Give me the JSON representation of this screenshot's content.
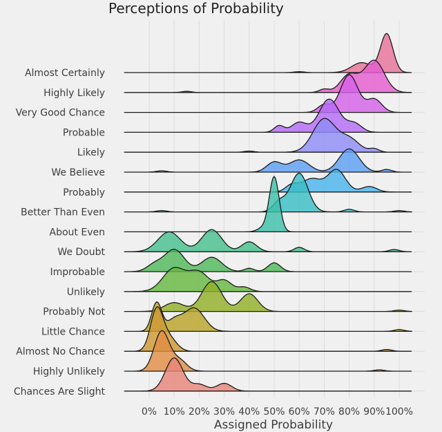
{
  "chart_data": {
    "type": "area",
    "subtype": "ridgeline",
    "title": "Perceptions of Probability",
    "xlabel": "Assigned Probability",
    "ylabel": "",
    "xlim": [
      -10,
      105
    ],
    "x_ticks": [
      0,
      10,
      20,
      30,
      40,
      50,
      60,
      70,
      80,
      90,
      100
    ],
    "x_tick_labels": [
      "0%",
      "10%",
      "20%",
      "30%",
      "40%",
      "50%",
      "60%",
      "70%",
      "80%",
      "90%",
      "100%"
    ],
    "grid": true,
    "legend": "none",
    "categories": [
      "Almost Certainly",
      "Highly Likely",
      "Very Good Chance",
      "Probable",
      "Likely",
      "We Believe",
      "Probably",
      "Better Than Even",
      "About Even",
      "We Doubt",
      "Improbable",
      "Unlikely",
      "Probably Not",
      "Little Chance",
      "Almost No Chance",
      "Highly Unlikely",
      "Chances Are Slight"
    ],
    "series": [
      {
        "name": "Almost Certainly",
        "color": "#e8739a",
        "peaks": [
          [
            95,
            2.5,
            1.75
          ],
          [
            85,
            4,
            0.45
          ],
          [
            60,
            2,
            0.04
          ]
        ]
      },
      {
        "name": "Highly Likely",
        "color": "#e55dcf",
        "peaks": [
          [
            90,
            4,
            1.45
          ],
          [
            80,
            3.5,
            0.8
          ],
          [
            70,
            2,
            0.15
          ],
          [
            15,
            2,
            0.05
          ]
        ]
      },
      {
        "name": "Very Good Chance",
        "color": "#d462e8",
        "peaks": [
          [
            80,
            3.5,
            1.7
          ],
          [
            70,
            2.5,
            0.35
          ],
          [
            90,
            3,
            0.6
          ]
        ]
      },
      {
        "name": "Probable",
        "color": "#b46cf5",
        "peaks": [
          [
            72,
            4,
            1.5
          ],
          [
            60,
            3,
            0.45
          ],
          [
            52,
            2,
            0.3
          ],
          [
            82,
            3,
            0.4
          ]
        ]
      },
      {
        "name": "Likely",
        "color": "#8f8cf7",
        "peaks": [
          [
            70,
            4.5,
            1.5
          ],
          [
            80,
            4,
            0.6
          ],
          [
            90,
            2,
            0.15
          ],
          [
            40,
            2,
            0.05
          ]
        ]
      },
      {
        "name": "We Believe",
        "color": "#5f9ff2",
        "peaks": [
          [
            80,
            4,
            1.05
          ],
          [
            60,
            4,
            0.55
          ],
          [
            50,
            3,
            0.45
          ],
          [
            95,
            2,
            0.12
          ],
          [
            5,
            2,
            0.06
          ]
        ]
      },
      {
        "name": "Probably",
        "color": "#4cb4eb",
        "peaks": [
          [
            75,
            3.5,
            1.0
          ],
          [
            65,
            4,
            0.6
          ],
          [
            57,
            2.5,
            0.3
          ],
          [
            88,
            3,
            0.25
          ]
        ]
      },
      {
        "name": "Better Than Even",
        "color": "#3bbdc4",
        "peaks": [
          [
            60,
            3.5,
            1.75
          ],
          [
            52,
            2.5,
            0.45
          ],
          [
            80,
            2,
            0.12
          ],
          [
            100,
            2,
            0.06
          ],
          [
            5,
            2,
            0.06
          ]
        ]
      },
      {
        "name": "About Even",
        "color": "#3dc0aa",
        "peaks": [
          [
            50,
            2,
            2.5
          ],
          [
            45,
            2,
            0.15
          ]
        ]
      },
      {
        "name": "We Doubt",
        "color": "#48c08e",
        "peaks": [
          [
            25,
            4,
            1.0
          ],
          [
            8,
            4.5,
            0.9
          ],
          [
            40,
            3,
            0.45
          ],
          [
            60,
            2,
            0.2
          ],
          [
            98,
            2,
            0.1
          ]
        ]
      },
      {
        "name": "Improbable",
        "color": "#52b85c",
        "peaks": [
          [
            10,
            4,
            1.0
          ],
          [
            25,
            4,
            0.65
          ],
          [
            2,
            3,
            0.3
          ],
          [
            50,
            2.5,
            0.4
          ],
          [
            40,
            2,
            0.15
          ]
        ]
      },
      {
        "name": "Unlikely",
        "color": "#67b840",
        "peaks": [
          [
            10,
            4.5,
            1.05
          ],
          [
            20,
            4,
            0.85
          ],
          [
            30,
            3,
            0.5
          ],
          [
            38,
            2.5,
            0.2
          ]
        ]
      },
      {
        "name": "Probably Not",
        "color": "#93b028",
        "peaks": [
          [
            25,
            4,
            1.35
          ],
          [
            40,
            3.5,
            0.8
          ],
          [
            10,
            4,
            0.4
          ],
          [
            100,
            2,
            0.06
          ]
        ]
      },
      {
        "name": "Little Chance",
        "color": "#b8a32a",
        "peaks": [
          [
            3,
            2,
            1.3
          ],
          [
            18,
            4,
            1.05
          ],
          [
            10,
            3,
            0.5
          ],
          [
            100,
            2,
            0.08
          ]
        ]
      },
      {
        "name": "Almost No Chance",
        "color": "#cf9935",
        "peaks": [
          [
            3,
            2.5,
            1.85
          ],
          [
            8,
            3,
            0.6
          ],
          [
            95,
            2,
            0.08
          ]
        ]
      },
      {
        "name": "Highly Unlikely",
        "color": "#e08d45",
        "peaks": [
          [
            5,
            3,
            1.8
          ],
          [
            12,
            3,
            0.5
          ],
          [
            92,
            2,
            0.06
          ]
        ]
      },
      {
        "name": "Chances Are Slight",
        "color": "#e8857a",
        "peaks": [
          [
            10,
            3.5,
            1.5
          ],
          [
            20,
            3,
            0.3
          ],
          [
            30,
            3,
            0.35
          ]
        ]
      }
    ]
  }
}
